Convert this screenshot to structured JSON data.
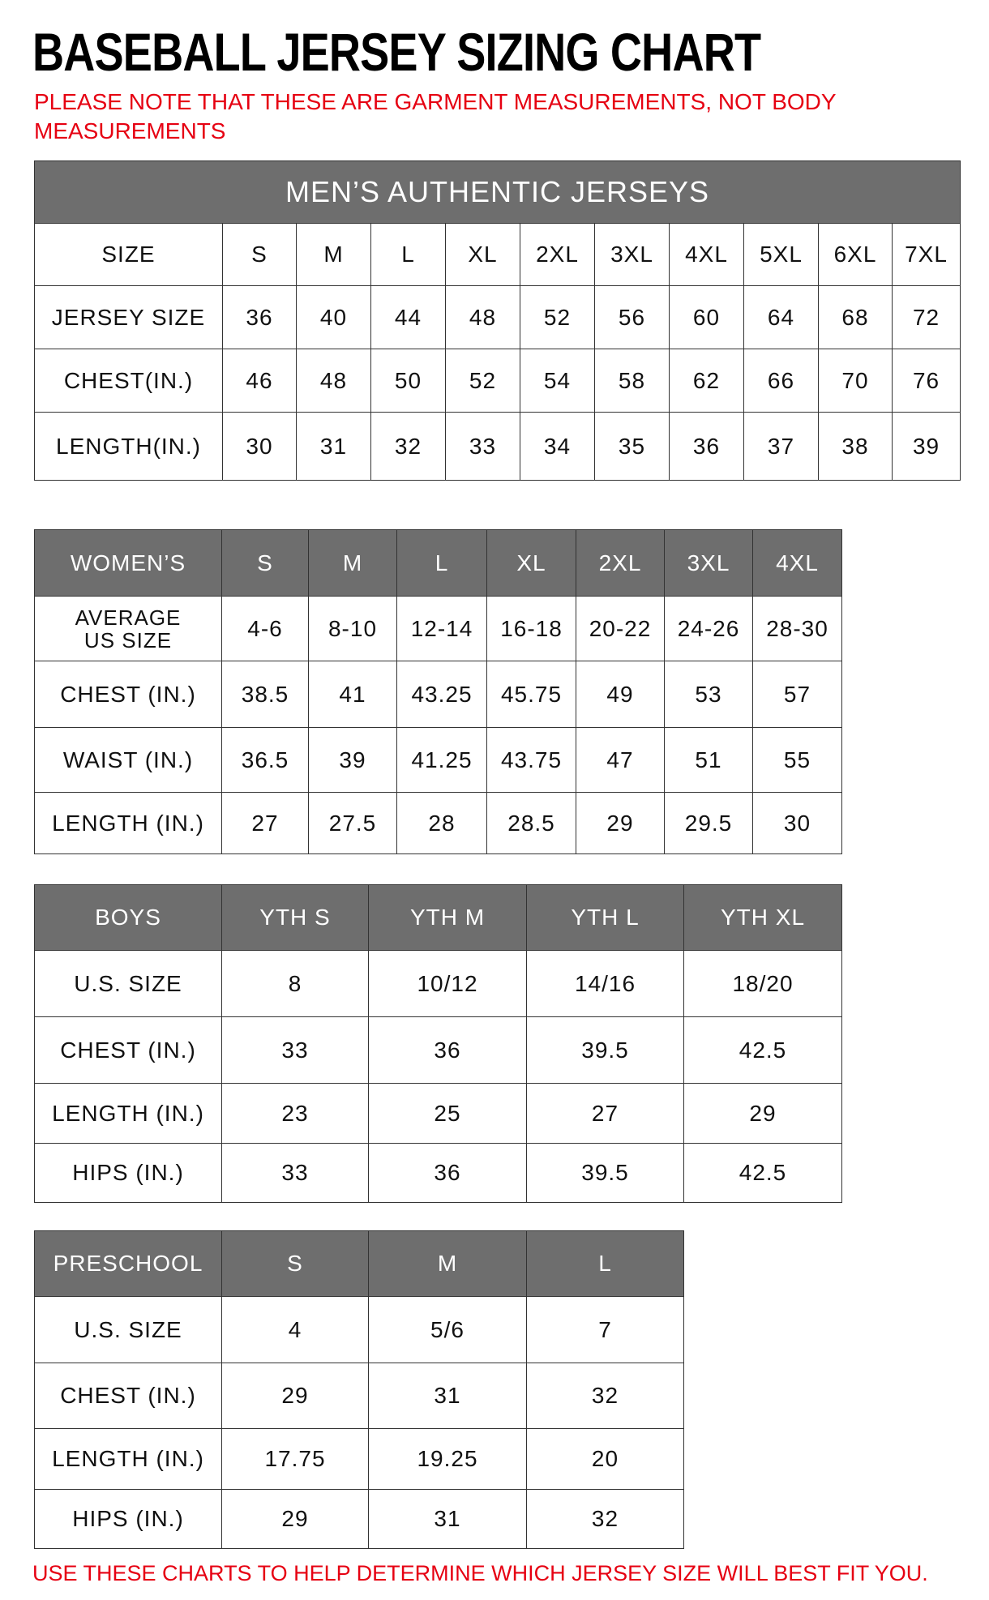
{
  "title": "BASEBALL JERSEY SIZING CHART",
  "note": "PLEASE NOTE THAT THESE ARE GARMENT MEASUREMENTS, NOT BODY MEASUREMENTS",
  "footer": "USE THESE CHARTS TO HELP DETERMINE WHICH JERSEY SIZE WILL BEST FIT YOU.",
  "colors": {
    "header_bg": "#6e6e6e",
    "note_red": "#e60012"
  },
  "mens": {
    "title": "MEN’S AUTHENTIC JERSEYS",
    "header": [
      "SIZE",
      "S",
      "M",
      "L",
      "XL",
      "2XL",
      "3XL",
      "4XL",
      "5XL",
      "6XL",
      "7XL"
    ],
    "rows": [
      [
        "JERSEY SIZE",
        "36",
        "40",
        "44",
        "48",
        "52",
        "56",
        "60",
        "64",
        "68",
        "72"
      ],
      [
        "CHEST(IN.)",
        "46",
        "48",
        "50",
        "52",
        "54",
        "58",
        "62",
        "66",
        "70",
        "76"
      ],
      [
        "LENGTH(IN.)",
        "30",
        "31",
        "32",
        "33",
        "34",
        "35",
        "36",
        "37",
        "38",
        "39"
      ]
    ]
  },
  "womens": {
    "header": [
      "WOMEN’S",
      "S",
      "M",
      "L",
      "XL",
      "2XL",
      "3XL",
      "4XL"
    ],
    "rows": [
      [
        "AVERAGE US SIZE",
        "4-6",
        "8-10",
        "12-14",
        "16-18",
        "20-22",
        "24-26",
        "28-30"
      ],
      [
        "CHEST (IN.)",
        "38.5",
        "41",
        "43.25",
        "45.75",
        "49",
        "53",
        "57"
      ],
      [
        "WAIST (IN.)",
        "36.5",
        "39",
        "41.25",
        "43.75",
        "47",
        "51",
        "55"
      ],
      [
        "LENGTH (IN.)",
        "27",
        "27.5",
        "28",
        "28.5",
        "29",
        "29.5",
        "30"
      ]
    ]
  },
  "boys": {
    "header": [
      "BOYS",
      "YTH S",
      "YTH M",
      "YTH L",
      "YTH XL"
    ],
    "rows": [
      [
        "U.S. SIZE",
        "8",
        "10/12",
        "14/16",
        "18/20"
      ],
      [
        "CHEST (IN.)",
        "33",
        "36",
        "39.5",
        "42.5"
      ],
      [
        "LENGTH (IN.)",
        "23",
        "25",
        "27",
        "29"
      ],
      [
        "HIPS (IN.)",
        "33",
        "36",
        "39.5",
        "42.5"
      ]
    ]
  },
  "preschool": {
    "header": [
      "PRESCHOOL",
      "S",
      "M",
      "L"
    ],
    "rows": [
      [
        "U.S. SIZE",
        "4",
        "5/6",
        "7"
      ],
      [
        "CHEST (IN.)",
        "29",
        "31",
        "32"
      ],
      [
        "LENGTH (IN.)",
        "17.75",
        "19.25",
        "20"
      ],
      [
        "HIPS (IN.)",
        "29",
        "31",
        "32"
      ]
    ]
  }
}
